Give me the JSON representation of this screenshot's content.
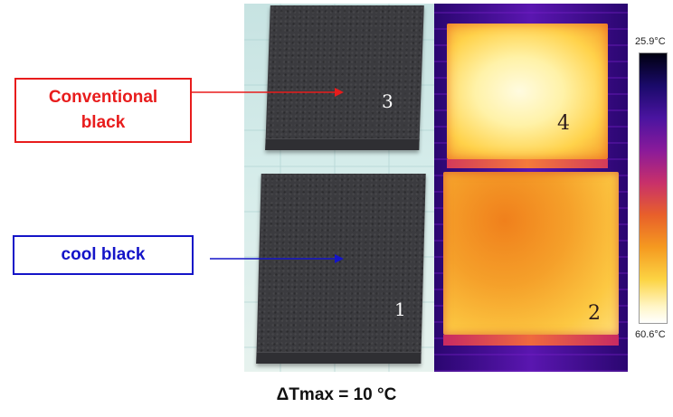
{
  "figure": {
    "photo": {
      "tile_top_number": "3",
      "tile_bottom_number": "1"
    },
    "thermal": {
      "tile_top_number": "4",
      "tile_bottom_number": "2"
    },
    "color_scale": {
      "top_label": "25.9°C",
      "bottom_label": "60.6°C"
    },
    "annotations": {
      "conventional_line1": "Conventional",
      "conventional_line2": "black",
      "conventional_color": "#e81c1c",
      "cool_label": "cool black",
      "cool_color": "#1414c8"
    },
    "caption": "ΔTmax = 10 °C"
  }
}
